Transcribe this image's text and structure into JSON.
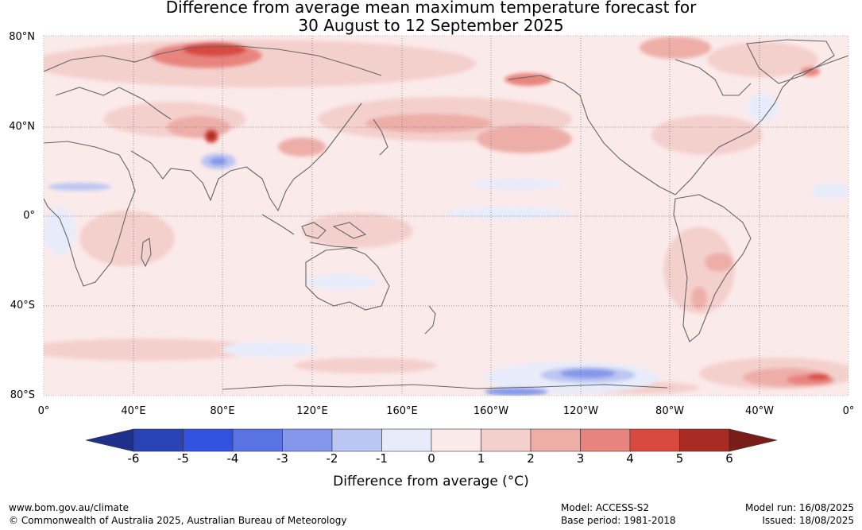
{
  "title": {
    "line1": "Difference from average mean maximum temperature forecast for",
    "line2": "30 August to 12 September 2025"
  },
  "lat_labels": [
    "80°N",
    "40°N",
    "0°",
    "40°S",
    "80°S"
  ],
  "lon_labels": [
    "0°",
    "40°E",
    "80°E",
    "120°E",
    "160°E",
    "160°W",
    "120°W",
    "80°W",
    "40°W",
    "0°"
  ],
  "colorbar": {
    "ticks": [
      "-6",
      "-5",
      "-4",
      "-3",
      "-2",
      "-1",
      "0",
      "1",
      "2",
      "3",
      "4",
      "5",
      "6"
    ],
    "colors": [
      "#1f2f8c",
      "#2a43b5",
      "#3352e0",
      "#5a73e3",
      "#8597ea",
      "#bcc6f2",
      "#e8ecfa",
      "#fbeaea",
      "#f4d0cc",
      "#eeaea8",
      "#e8847e",
      "#d84a40",
      "#a82b24",
      "#7a1c17"
    ],
    "label": "Difference from average (°C)"
  },
  "footer": {
    "url": "www.bom.gov.au/climate",
    "copyright": "© Commonwealth of Australia 2025, Australian Bureau of Meteorology",
    "model": "Model: ACCESS-S2",
    "base_period": "Base period: 1981-2018",
    "model_run": "Model run: 16/08/2025",
    "issued": "Issued: 18/08/2025"
  }
}
